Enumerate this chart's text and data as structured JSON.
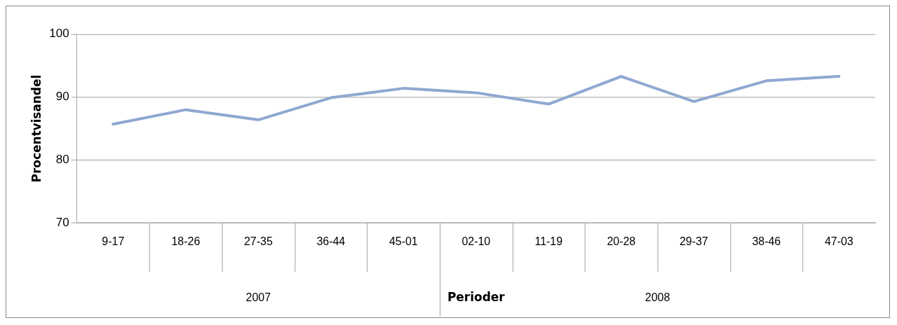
{
  "chart_data": {
    "type": "line",
    "xlabel": "Perioder",
    "ylabel": "Procentvisandel",
    "categories": [
      "9-17",
      "18-26",
      "27-35",
      "36-44",
      "45-01",
      "02-10",
      "11-19",
      "20-28",
      "29-37",
      "38-46",
      "47-03"
    ],
    "series": [
      {
        "color": "#8fa8d2",
        "values": [
          85.7,
          88.0,
          86.4,
          89.9,
          91.4,
          90.7,
          88.9,
          93.3,
          89.3,
          92.6,
          93.3
        ]
      }
    ],
    "ylim": [
      70,
      100
    ],
    "yticks": [
      70,
      80,
      90,
      100
    ],
    "grid": "y",
    "legend": false,
    "marker": "none",
    "line_style": "solid",
    "annotations": [
      "2007",
      "2008"
    ]
  }
}
